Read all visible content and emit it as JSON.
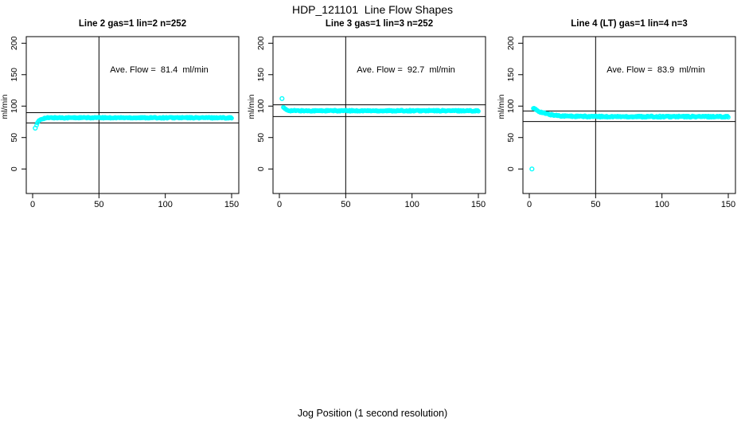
{
  "figure": {
    "title": "HDP_121101  Line Flow Shapes",
    "xlabel": "Jog Position (1 second resolution)",
    "background_color": "#FFFFFF",
    "axis_color": "#000000",
    "point_color": "#00FFFF"
  },
  "chart_data": [
    {
      "type": "scatter",
      "title": "Line 2 gas=1 lin=2 n=252",
      "annotation": "Ave. Flow =  81.4  ml/min",
      "ave_flow_ml_min": 81.4,
      "ylabel": "ml/min",
      "xticks": [
        0,
        50,
        100,
        150
      ],
      "yticks": [
        0,
        50,
        100,
        150,
        200
      ],
      "xlim": [
        -4.8,
        155.4
      ],
      "ylim": [
        -39,
        210.5
      ],
      "grid": false,
      "vline_x": 50,
      "hlines": [
        89.5,
        73.3
      ],
      "outliers": [
        [
          2,
          65
        ]
      ],
      "trend": {
        "x_start": 3,
        "x_end": 150,
        "x_step": 0.6,
        "plateau": 81.5,
        "amp": -11.5,
        "tau": 2.2,
        "jitter": 0.9
      },
      "annotation_pos": [
        95,
        155
      ]
    },
    {
      "type": "scatter",
      "title": "Line 3 gas=1 lin=3 n=252",
      "annotation": "Ave. Flow =  92.7  ml/min",
      "ave_flow_ml_min": 92.7,
      "ylabel": "ml/min",
      "xticks": [
        0,
        50,
        100,
        150
      ],
      "yticks": [
        0,
        50,
        100,
        150,
        200
      ],
      "xlim": [
        -4.8,
        155.4
      ],
      "ylim": [
        -39,
        210.5
      ],
      "grid": false,
      "vline_x": 50,
      "hlines": [
        102.0,
        83.4
      ],
      "outliers": [
        [
          2,
          112
        ]
      ],
      "trend": {
        "x_start": 3,
        "x_end": 150,
        "x_step": 0.6,
        "plateau": 92.6,
        "amp": 5.8,
        "tau": 1.6,
        "jitter": 0.9
      },
      "annotation_pos": [
        95,
        155
      ]
    },
    {
      "type": "scatter",
      "title": "Line 4 (LT) gas=1 lin=4 n=3",
      "annotation": "Ave. Flow =  83.9  ml/min",
      "ave_flow_ml_min": 83.9,
      "ylabel": "ml/min",
      "xticks": [
        0,
        50,
        100,
        150
      ],
      "yticks": [
        0,
        50,
        100,
        150,
        200
      ],
      "xlim": [
        -4.8,
        155.4
      ],
      "ylim": [
        -39,
        210.5
      ],
      "grid": false,
      "vline_x": 50,
      "hlines": [
        92.3,
        75.5
      ],
      "outliers": [
        [
          2,
          0
        ]
      ],
      "trend": {
        "x_start": 3,
        "x_end": 150,
        "x_step": 0.6,
        "plateau": 83.3,
        "amp": 13.5,
        "tau": 9,
        "jitter": 1.1
      },
      "annotation_pos": [
        95,
        155
      ]
    }
  ]
}
